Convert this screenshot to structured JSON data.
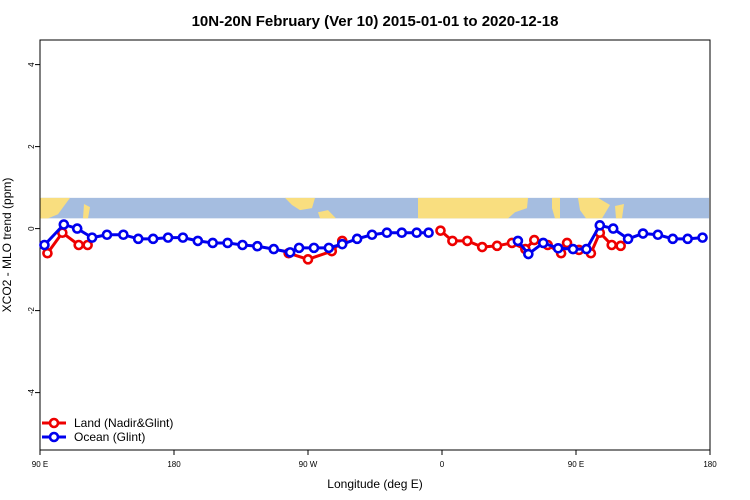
{
  "chart_data": {
    "type": "line",
    "title": "10N-20N February (Ver 10)   2015-01-01 to 2020-12-18",
    "xlabel": "Longitude (deg E)",
    "ylabel": "XCO2 - MLO trend (ppm)",
    "xlim": [
      90,
      540
    ],
    "ylim": [
      -5.4,
      4.6
    ],
    "x_ticks": [
      {
        "value": 90,
        "label": "90 E"
      },
      {
        "value": 180,
        "label": "180"
      },
      {
        "value": 270,
        "label": "90 W"
      },
      {
        "value": 360,
        "label": "0"
      },
      {
        "value": 450,
        "label": "90 E"
      },
      {
        "value": 540,
        "label": "180"
      }
    ],
    "y_ticks": [
      {
        "value": 4,
        "label": "4"
      },
      {
        "value": 2,
        "label": "2"
      },
      {
        "value": 0,
        "label": "0"
      },
      {
        "value": -2,
        "label": "-2"
      },
      {
        "value": -4,
        "label": "-4"
      }
    ],
    "legend_position": "bottom-left",
    "map_band": {
      "y_range": [
        0.25,
        0.75
      ],
      "ocean_color": "#a5bde0",
      "land_color": "#f9de7f"
    },
    "series": [
      {
        "name": "Land (Nadir&Glint)",
        "color": "#ee0000",
        "segments": [
          [
            [
              95,
              -0.6
            ],
            [
              105,
              -0.1
            ],
            [
              116,
              -0.4
            ],
            [
              122,
              -0.4
            ]
          ],
          [
            [
              257,
              -0.6
            ],
            [
              270,
              -0.75
            ],
            [
              286,
              -0.55
            ],
            [
              293,
              -0.3
            ]
          ],
          [
            [
              359,
              -0.05
            ],
            [
              367,
              -0.3
            ],
            [
              377,
              -0.3
            ],
            [
              387,
              -0.45
            ],
            [
              397,
              -0.42
            ],
            [
              407,
              -0.35
            ],
            [
              416,
              -0.5
            ],
            [
              422,
              -0.28
            ],
            [
              431,
              -0.4
            ],
            [
              440,
              -0.6
            ],
            [
              444,
              -0.35
            ],
            [
              452,
              -0.52
            ],
            [
              460,
              -0.6
            ],
            [
              466,
              -0.1
            ],
            [
              474,
              -0.4
            ],
            [
              480,
              -0.42
            ]
          ]
        ]
      },
      {
        "name": "Ocean (Glint)",
        "color": "#0000ee",
        "segments": [
          [
            [
              93,
              -0.4
            ],
            [
              106,
              0.1
            ],
            [
              115,
              0.0
            ],
            [
              125,
              -0.22
            ],
            [
              135,
              -0.15
            ],
            [
              146,
              -0.15
            ],
            [
              156,
              -0.25
            ],
            [
              166,
              -0.25
            ],
            [
              176,
              -0.22
            ],
            [
              186,
              -0.22
            ],
            [
              196,
              -0.3
            ],
            [
              206,
              -0.35
            ],
            [
              216,
              -0.35
            ],
            [
              226,
              -0.4
            ],
            [
              236,
              -0.43
            ],
            [
              247,
              -0.5
            ],
            [
              258,
              -0.58
            ],
            [
              264,
              -0.47
            ],
            [
              274,
              -0.47
            ],
            [
              284,
              -0.47
            ],
            [
              293,
              -0.38
            ],
            [
              303,
              -0.25
            ],
            [
              313,
              -0.15
            ],
            [
              323,
              -0.1
            ],
            [
              333,
              -0.1
            ],
            [
              343,
              -0.1
            ],
            [
              351,
              -0.1
            ]
          ],
          [
            [
              411,
              -0.3
            ],
            [
              418,
              -0.62
            ],
            [
              428,
              -0.35
            ],
            [
              438,
              -0.48
            ],
            [
              448,
              -0.5
            ],
            [
              457,
              -0.5
            ],
            [
              466,
              0.08
            ],
            [
              475,
              0.0
            ],
            [
              485,
              -0.25
            ],
            [
              495,
              -0.12
            ],
            [
              505,
              -0.15
            ],
            [
              515,
              -0.25
            ],
            [
              525,
              -0.25
            ],
            [
              535,
              -0.22
            ]
          ]
        ]
      }
    ]
  }
}
